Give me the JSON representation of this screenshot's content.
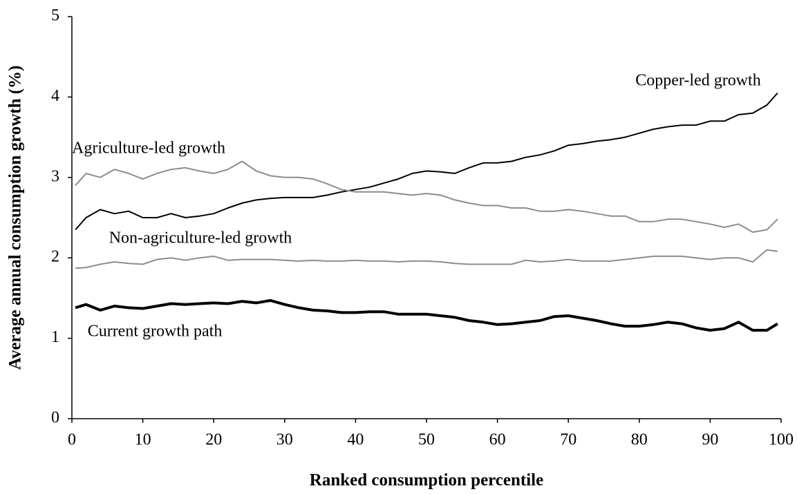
{
  "chart_data": {
    "type": "line",
    "xlabel": "Ranked consumption percentile",
    "ylabel": "Average annual consumption growth (%)",
    "x": [
      0.5,
      2,
      4,
      6,
      8,
      10,
      12,
      14,
      16,
      18,
      20,
      22,
      24,
      26,
      28,
      30,
      32,
      34,
      36,
      38,
      40,
      42,
      44,
      46,
      48,
      50,
      52,
      54,
      56,
      58,
      60,
      62,
      64,
      66,
      68,
      70,
      72,
      74,
      76,
      78,
      80,
      82,
      84,
      86,
      88,
      90,
      92,
      94,
      96,
      98,
      99.5
    ],
    "series": [
      {
        "name": "Copper-led growth",
        "color": "#000000",
        "width": 2,
        "values": [
          2.35,
          2.5,
          2.6,
          2.55,
          2.58,
          2.5,
          2.5,
          2.55,
          2.5,
          2.52,
          2.55,
          2.62,
          2.68,
          2.72,
          2.74,
          2.75,
          2.75,
          2.75,
          2.78,
          2.82,
          2.85,
          2.88,
          2.93,
          2.98,
          3.05,
          3.08,
          3.07,
          3.05,
          3.12,
          3.18,
          3.18,
          3.2,
          3.25,
          3.28,
          3.33,
          3.4,
          3.42,
          3.45,
          3.47,
          3.5,
          3.55,
          3.6,
          3.63,
          3.65,
          3.65,
          3.7,
          3.7,
          3.78,
          3.8,
          3.9,
          4.05
        ]
      },
      {
        "name": "Agriculture-led growth",
        "color": "#8c8c8c",
        "width": 2,
        "values": [
          2.9,
          3.05,
          3.0,
          3.1,
          3.05,
          2.98,
          3.05,
          3.1,
          3.12,
          3.08,
          3.05,
          3.1,
          3.2,
          3.08,
          3.02,
          3.0,
          3.0,
          2.98,
          2.92,
          2.85,
          2.82,
          2.82,
          2.82,
          2.8,
          2.78,
          2.8,
          2.78,
          2.72,
          2.68,
          2.65,
          2.65,
          2.62,
          2.62,
          2.58,
          2.58,
          2.6,
          2.58,
          2.55,
          2.52,
          2.52,
          2.45,
          2.45,
          2.48,
          2.48,
          2.45,
          2.42,
          2.38,
          2.42,
          2.32,
          2.35,
          2.48
        ]
      },
      {
        "name": "Non-agriculture-led growth",
        "color": "#8c8c8c",
        "width": 2,
        "values": [
          1.87,
          1.88,
          1.92,
          1.95,
          1.93,
          1.92,
          1.98,
          2.0,
          1.97,
          2.0,
          2.02,
          1.97,
          1.98,
          1.98,
          1.98,
          1.97,
          1.96,
          1.97,
          1.96,
          1.96,
          1.97,
          1.96,
          1.96,
          1.95,
          1.96,
          1.96,
          1.95,
          1.93,
          1.92,
          1.92,
          1.92,
          1.92,
          1.97,
          1.95,
          1.96,
          1.98,
          1.96,
          1.96,
          1.96,
          1.98,
          2.0,
          2.02,
          2.02,
          2.02,
          2.0,
          1.98,
          2.0,
          2.0,
          1.95,
          2.1,
          2.08
        ]
      },
      {
        "name": "Current growth path",
        "color": "#000000",
        "width": 4,
        "values": [
          1.38,
          1.42,
          1.35,
          1.4,
          1.38,
          1.37,
          1.4,
          1.43,
          1.42,
          1.43,
          1.44,
          1.43,
          1.46,
          1.44,
          1.47,
          1.42,
          1.38,
          1.35,
          1.34,
          1.32,
          1.32,
          1.33,
          1.33,
          1.3,
          1.3,
          1.3,
          1.28,
          1.26,
          1.22,
          1.2,
          1.17,
          1.18,
          1.2,
          1.22,
          1.27,
          1.28,
          1.25,
          1.22,
          1.18,
          1.15,
          1.15,
          1.17,
          1.2,
          1.18,
          1.13,
          1.1,
          1.12,
          1.2,
          1.1,
          1.1,
          1.18
        ]
      }
    ],
    "xlim": [
      0,
      100
    ],
    "xticks": [
      0,
      10,
      20,
      30,
      40,
      50,
      60,
      70,
      80,
      90,
      100
    ],
    "ylim": [
      0,
      5
    ],
    "yticks": [
      0,
      1,
      2,
      3,
      4,
      5
    ],
    "grid": false
  }
}
